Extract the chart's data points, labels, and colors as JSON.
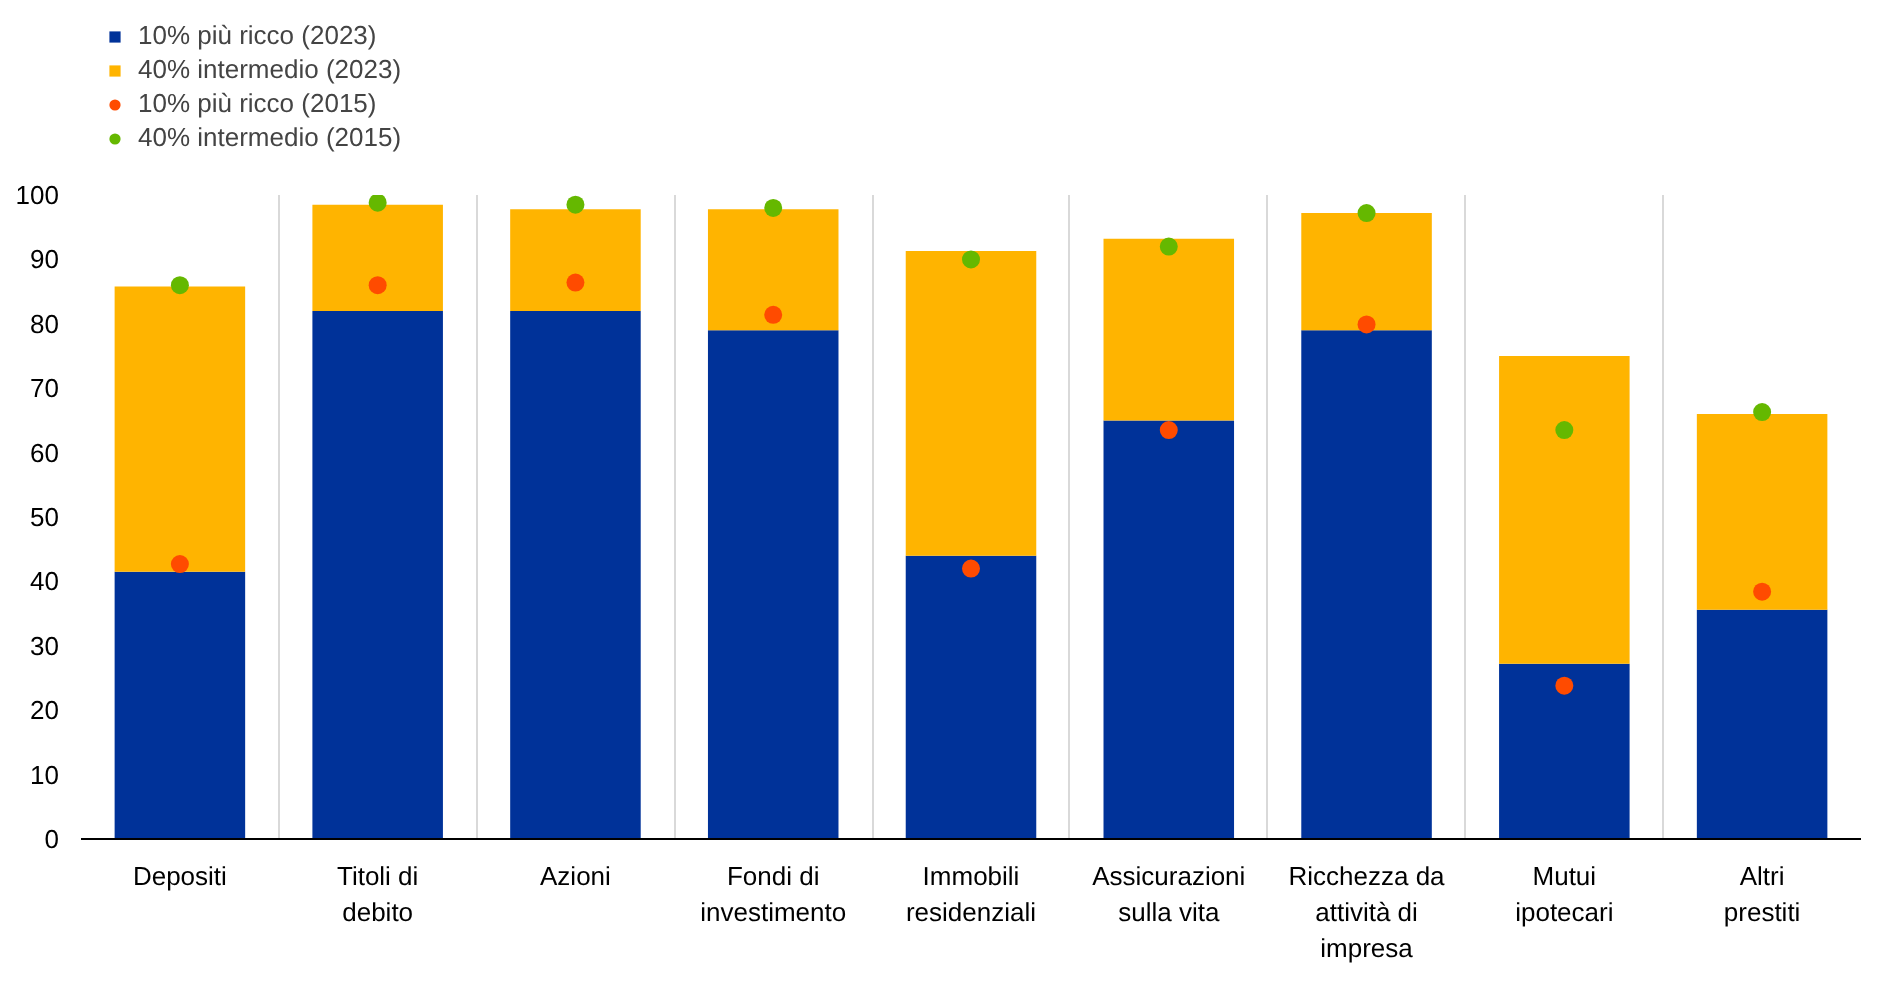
{
  "chart_data": {
    "type": "bar",
    "stacked": true,
    "categories": [
      "Depositi",
      "Titoli di debito",
      "Azioni",
      "Fondi di investimento",
      "Immobili residenziali",
      "Assicurazioni sulla vita",
      "Ricchezza da attività di impresa",
      "Mutui ipotecari",
      "Altri prestiti"
    ],
    "series": [
      {
        "name": "10% più ricco (2023)",
        "color": "#003299",
        "values": [
          41.5,
          82,
          82,
          79,
          44,
          65,
          79,
          27.2,
          35.6
        ]
      },
      {
        "name": "40% intermedio (2023)",
        "color": "#ffb400",
        "values": [
          44.3,
          16.5,
          15.8,
          18.8,
          47.3,
          28.2,
          18.2,
          47.8,
          30.4
        ]
      },
      {
        "name": "10% più ricco (2015)",
        "type": "scatter",
        "color": "#ff4b00",
        "x": [
          "Depositi",
          "Titoli di debito",
          "Azioni",
          "Fondi di investimento",
          "Immobili residenziali",
          "Assicurazioni sulla vita",
          "Ricchezza da attività di impresa",
          "Mutui ipotecari",
          "Altri prestiti"
        ],
        "values": [
          42.7,
          86,
          86.4,
          81.4,
          42,
          63.5,
          79.9,
          23.8,
          38.4
        ]
      },
      {
        "name": "40% intermedio (2015)",
        "type": "scatter",
        "color": "#65b800",
        "x": [
          "Depositi",
          "Titoli di debito",
          "Azioni",
          "Fondi di investimento",
          "Immobili residenziali",
          "Assicurazioni sulla vita",
          "Ricchezza da attività di impresa",
          "Mutui ipotecari",
          "Altri prestiti"
        ],
        "values": [
          86,
          98.8,
          98.5,
          98,
          90,
          92,
          97.2,
          63.5,
          66.3
        ]
      }
    ],
    "ylim": [
      0,
      100
    ],
    "yticks": [
      0,
      10,
      20,
      30,
      40,
      50,
      60,
      70,
      80,
      90,
      100
    ],
    "grid": "x",
    "legend": "top left",
    "marker": "circle"
  }
}
